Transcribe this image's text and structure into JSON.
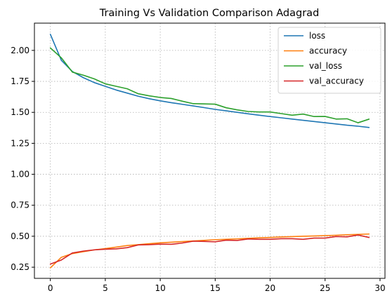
{
  "chart_data": {
    "type": "line",
    "title": "Training Vs Validation Comparison Adagrad",
    "xlabel": "",
    "ylabel": "",
    "xlim": [
      -1.45,
      30.45
    ],
    "ylim": [
      0.16,
      2.22
    ],
    "x_ticks": [
      0,
      5,
      10,
      15,
      20,
      25,
      30
    ],
    "y_ticks": [
      0.25,
      0.5,
      0.75,
      1.0,
      1.25,
      1.5,
      1.75,
      2.0
    ],
    "y_tick_labels": [
      "0.25",
      "0.50",
      "0.75",
      "1.00",
      "1.25",
      "1.50",
      "1.75",
      "2.00"
    ],
    "grid": true,
    "legend_position": "top-right",
    "x": [
      0,
      1,
      2,
      3,
      4,
      5,
      6,
      7,
      8,
      9,
      10,
      11,
      12,
      13,
      14,
      15,
      16,
      17,
      18,
      19,
      20,
      21,
      22,
      23,
      24,
      25,
      26,
      27,
      28,
      29
    ],
    "series": [
      {
        "name": "loss",
        "color": "#1f77b4",
        "values": [
          2.13,
          1.92,
          1.83,
          1.78,
          1.74,
          1.71,
          1.68,
          1.655,
          1.63,
          1.61,
          1.593,
          1.578,
          1.565,
          1.552,
          1.538,
          1.524,
          1.512,
          1.5,
          1.488,
          1.477,
          1.466,
          1.456,
          1.446,
          1.436,
          1.426,
          1.416,
          1.406,
          1.396,
          1.388,
          1.378
        ]
      },
      {
        "name": "accuracy",
        "color": "#ff7f0e",
        "values": [
          0.245,
          0.33,
          0.36,
          0.375,
          0.39,
          0.4,
          0.412,
          0.425,
          0.432,
          0.44,
          0.447,
          0.452,
          0.457,
          0.462,
          0.467,
          0.472,
          0.475,
          0.479,
          0.483,
          0.487,
          0.49,
          0.494,
          0.497,
          0.5,
          0.502,
          0.505,
          0.508,
          0.512,
          0.515,
          0.518
        ]
      },
      {
        "name": "val_loss",
        "color": "#2ca02c",
        "values": [
          2.02,
          1.94,
          1.825,
          1.8,
          1.77,
          1.73,
          1.71,
          1.69,
          1.65,
          1.633,
          1.62,
          1.612,
          1.59,
          1.57,
          1.568,
          1.566,
          1.537,
          1.52,
          1.507,
          1.503,
          1.503,
          1.49,
          1.477,
          1.486,
          1.466,
          1.467,
          1.446,
          1.448,
          1.416,
          1.445
        ]
      },
      {
        "name": "val_accuracy",
        "color": "#d62728",
        "values": [
          0.275,
          0.308,
          0.365,
          0.38,
          0.39,
          0.395,
          0.398,
          0.408,
          0.43,
          0.432,
          0.436,
          0.435,
          0.445,
          0.46,
          0.458,
          0.455,
          0.468,
          0.466,
          0.478,
          0.475,
          0.475,
          0.48,
          0.48,
          0.475,
          0.485,
          0.485,
          0.498,
          0.495,
          0.51,
          0.49
        ]
      }
    ]
  }
}
